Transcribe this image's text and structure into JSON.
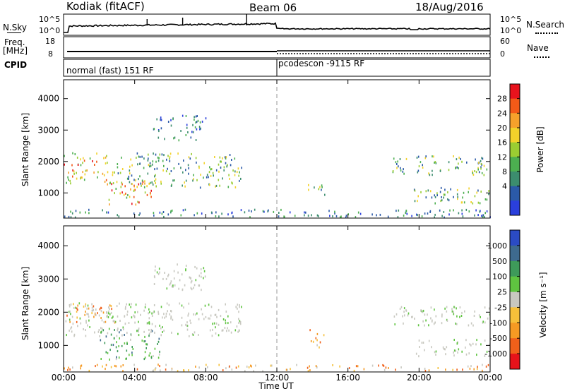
{
  "header": {
    "radar": "Kodiak (fitACF)",
    "beam": "Beam 06",
    "date": "18/Aug/2016"
  },
  "ancillary": {
    "nsky_label": "N.Sky",
    "nsky_ticks": [
      "10^5",
      "10^0"
    ],
    "nsearch_label": "N.Search",
    "nsearch_ticks": [
      "10^5",
      "10^0"
    ],
    "freq_label": "Freq.",
    "freq_unit": "[MHz]",
    "freq_ticks": [
      "18",
      "8"
    ],
    "nave_label": "Nave",
    "nave_ticks": [
      "60",
      "0"
    ],
    "cpid_label": "CPID",
    "cpid_segments": [
      "normal (fast) 151 RF",
      "pcodescon -9115 RF"
    ]
  },
  "chart_data": [
    {
      "type": "heatmap",
      "name": "power",
      "ylabel": "Slant Range [km]",
      "yticks": [
        1000,
        2000,
        3000,
        4000
      ],
      "ylim": [
        200,
        4600
      ],
      "xlim": [
        0,
        24
      ],
      "colorbar": {
        "label": "Power [dB]",
        "ticks": [
          "28",
          "24",
          "20",
          "16",
          "12",
          "8",
          "4"
        ],
        "colors": [
          "#e8131d",
          "#f35a18",
          "#f6a12b",
          "#f2d22a",
          "#9acd32",
          "#4caf50",
          "#3c8d6e",
          "#2b5aa8",
          "#2a3fdc"
        ]
      },
      "regions": [
        {
          "t0": 0.0,
          "t1": 3.2,
          "r0": 1300,
          "r1": 1800,
          "level": "strong"
        },
        {
          "t0": 0.0,
          "t1": 2.5,
          "r0": 1900,
          "r1": 2300,
          "level": "strong"
        },
        {
          "t0": 2.5,
          "t1": 5.0,
          "r0": 650,
          "r1": 1400,
          "level": "strong"
        },
        {
          "t0": 3.0,
          "t1": 10.0,
          "r0": 1200,
          "r1": 2300,
          "level": "medium"
        },
        {
          "t0": 5.0,
          "t1": 8.0,
          "r0": 2700,
          "r1": 3500,
          "level": "weak"
        },
        {
          "t0": 0.0,
          "t1": 24.0,
          "r0": 250,
          "r1": 500,
          "level": "weak"
        },
        {
          "t0": 13.7,
          "t1": 14.7,
          "r0": 950,
          "r1": 1300,
          "level": "medium"
        },
        {
          "t0": 18.5,
          "t1": 24.0,
          "r0": 1600,
          "r1": 2200,
          "level": "medium"
        },
        {
          "t0": 19.5,
          "t1": 24.0,
          "r0": 700,
          "r1": 1200,
          "level": "medium"
        }
      ]
    },
    {
      "type": "heatmap",
      "name": "velocity",
      "ylabel": "Slant Range [km]",
      "yticks": [
        1000,
        2000,
        3000,
        4000
      ],
      "ylim": [
        200,
        4600
      ],
      "xlim": [
        0,
        24
      ],
      "colorbar": {
        "label": "Velocity [m s⁻¹]",
        "ticks": [
          "1000",
          "500",
          "100",
          "25",
          "-25",
          "-100",
          "-500",
          "-1000"
        ],
        "colors": [
          "#2b4bc4",
          "#3e6a8e",
          "#3e9a5a",
          "#5fc440",
          "#c8c8c0",
          "#f6c03a",
          "#f59a23",
          "#f0601a",
          "#e6131a"
        ]
      },
      "regions": [
        {
          "t0": 0.0,
          "t1": 10.0,
          "r0": 1300,
          "r1": 2300,
          "level": "gray"
        },
        {
          "t0": 2.0,
          "t1": 5.5,
          "r0": 600,
          "r1": 1500,
          "level": "green"
        },
        {
          "t0": 0.0,
          "t1": 3.0,
          "r0": 1700,
          "r1": 2300,
          "level": "orange"
        },
        {
          "t0": 5.0,
          "t1": 8.0,
          "r0": 2700,
          "r1": 3500,
          "level": "gray"
        },
        {
          "t0": 0.0,
          "t1": 24.0,
          "r0": 250,
          "r1": 450,
          "level": "orange"
        },
        {
          "t0": 13.7,
          "t1": 14.7,
          "r0": 950,
          "r1": 1500,
          "level": "orange"
        },
        {
          "t0": 18.5,
          "t1": 24.0,
          "r0": 1600,
          "r1": 2200,
          "level": "gray"
        },
        {
          "t0": 19.5,
          "t1": 24.0,
          "r0": 700,
          "r1": 1200,
          "level": "gray"
        }
      ]
    }
  ],
  "x_axis": {
    "ticks": [
      "00:00",
      "04:00",
      "08:00",
      "12:00",
      "16:00",
      "20:00",
      "00:00"
    ],
    "label": "Time UT"
  }
}
